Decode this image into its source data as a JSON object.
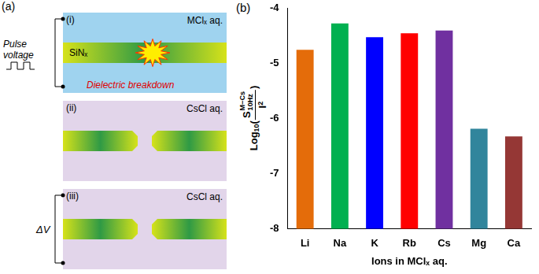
{
  "panel_a": {
    "label": "(a)",
    "panels": [
      {
        "label": "(i)",
        "solution": "MClₓ aq.",
        "membrane": "SiNₓ",
        "source": "Pulse voltage",
        "event": "Dielectric breakdown"
      },
      {
        "label": "(ii)",
        "solution": "CsCl aq."
      },
      {
        "label": "(iii)",
        "solution": "CsCl aq.",
        "measurement": "ΔV"
      }
    ]
  },
  "chart_data": {
    "type": "bar",
    "panel_label": "(b)",
    "x_label": "Ions in MClₓ aq.",
    "y_label": {
      "function": "Log",
      "function_sub": "10",
      "open": "(",
      "numerator": "S",
      "numerator_sup": "M−Cs",
      "numerator_sub": "10Hz",
      "denominator": "I",
      "denominator_sup": "2",
      "close": ")"
    },
    "categories": [
      "Li",
      "Na",
      "K",
      "Rb",
      "Cs",
      "Mg",
      "Ca"
    ],
    "values": [
      -4.75,
      -4.27,
      -4.52,
      -4.45,
      -4.4,
      -6.18,
      -6.32
    ],
    "colors": [
      "#e46c0a",
      "#00b050",
      "#0000ff",
      "#ff0000",
      "#7030a0",
      "#31859c",
      "#953735"
    ],
    "ylim": [
      -8,
      -4
    ],
    "yticks": [
      -8,
      -7,
      -6,
      -5,
      -4
    ],
    "grid": false
  }
}
